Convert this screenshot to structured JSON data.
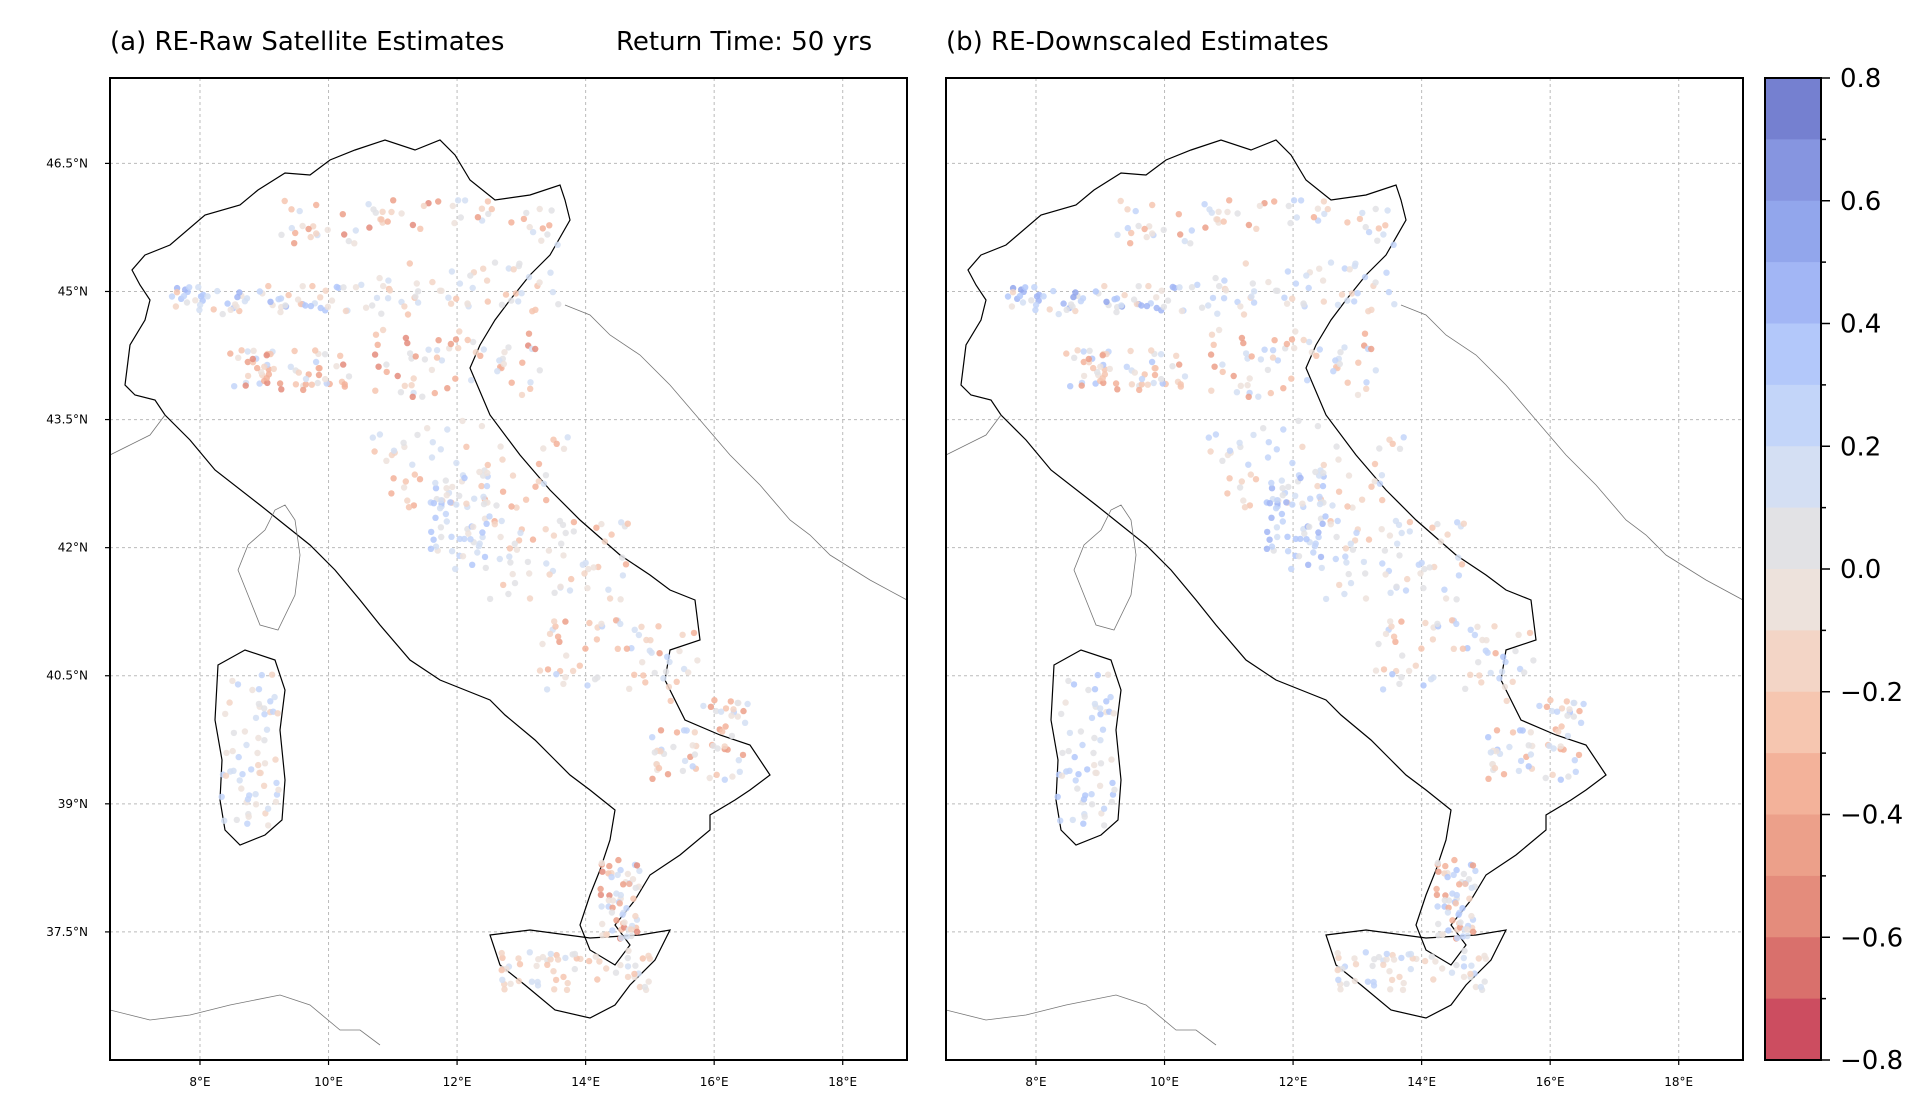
{
  "panel_a": {
    "title": "(a) RE-Raw Satellite Estimates",
    "subtitle": "Return Time: 50 yrs"
  },
  "panel_b": {
    "title": "(b) RE-Downscaled Estimates"
  },
  "map": {
    "lon_range": [
      6.6,
      19.0
    ],
    "lat_range": [
      36.0,
      47.5
    ],
    "lon_ticks": [
      8,
      10,
      12,
      14,
      16,
      18
    ],
    "lon_tick_labels": [
      "8°E",
      "10°E",
      "12°E",
      "14°E",
      "16°E",
      "18°E"
    ],
    "lat_ticks": [
      46.5,
      45,
      43.5,
      42,
      40.5,
      39,
      37.5
    ],
    "lat_tick_labels": [
      "46.5°N",
      "45°N",
      "43.5°N",
      "42°N",
      "40.5°N",
      "39°N",
      "37.5°N"
    ],
    "grid": true
  },
  "colorbar": {
    "min": -0.8,
    "max": 0.8,
    "ticks": [
      0.8,
      0.6,
      0.4,
      0.2,
      0.0,
      -0.2,
      -0.4,
      -0.6,
      -0.8
    ],
    "tick_labels": [
      "0.8",
      "0.6",
      "0.4",
      "0.2",
      "0.0",
      "−0.2",
      "−0.4",
      "−0.6",
      "−0.8"
    ],
    "colors_top_to_bottom": [
      "#7580d0",
      "#8695e0",
      "#92a6ec",
      "#a2b6f5",
      "#b3c8fa",
      "#c3d5f9",
      "#d4dff3",
      "#e2e2e5",
      "#ede2dc",
      "#f3d5c6",
      "#f6c6b0",
      "#f3b29a",
      "#eca08a",
      "#e48c7c",
      "#d9706c",
      "#cc4d60"
    ],
    "colormap": "coolwarm_r"
  }
}
